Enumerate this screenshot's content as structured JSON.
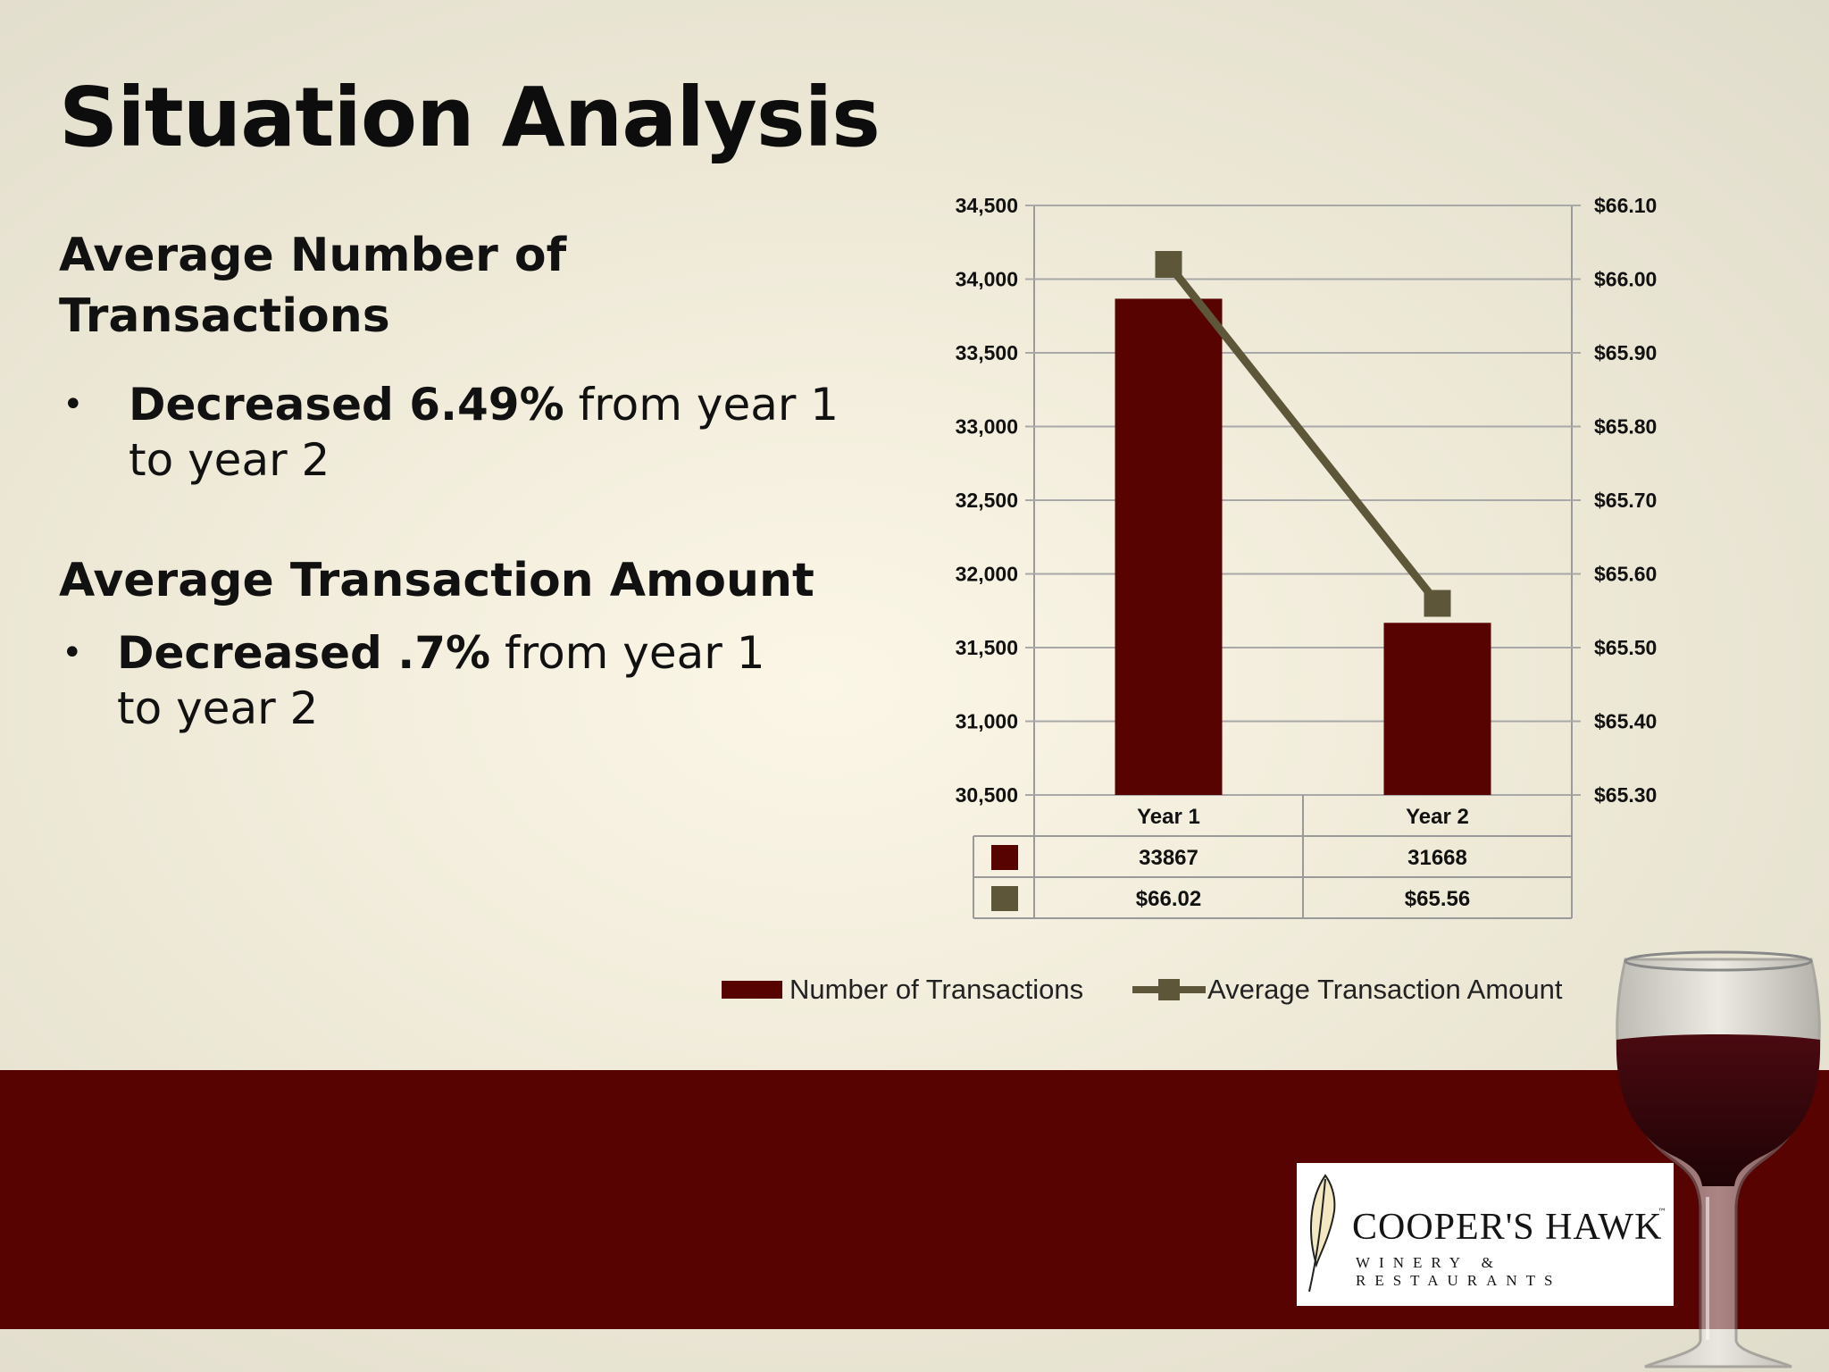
{
  "slide": {
    "title": "Situation Analysis",
    "section1_heading": "Average Number of Transactions",
    "section1_bullet_bold": "Decreased 6.49%",
    "section1_bullet_rest": " from year 1 to year 2",
    "section2_heading": "Average Transaction Amount",
    "section2_bullet_bold": "Decreased .7%",
    "section2_bullet_rest": " from year 1 to year 2",
    "bullet_symbol": "•"
  },
  "chart_data": {
    "type": "bar",
    "categories": [
      "Year 1",
      "Year 2"
    ],
    "series": [
      {
        "name": "Number of Transactions",
        "type": "bar",
        "axis": "left",
        "values": [
          33867,
          31668
        ],
        "labels": [
          "33867",
          "31668"
        ],
        "color": "#570302"
      },
      {
        "name": "Average Transaction Amount",
        "type": "line",
        "axis": "right",
        "values": [
          66.02,
          65.56
        ],
        "labels": [
          "$66.02",
          "$65.56"
        ],
        "color": "#5e5638"
      }
    ],
    "y_left": {
      "min": 30500,
      "max": 34500,
      "step": 500,
      "tick_labels": [
        "30,500",
        "31,000",
        "31,500",
        "32,000",
        "32,500",
        "33,000",
        "33,500",
        "34,000",
        "34,500"
      ]
    },
    "y_right": {
      "min": 65.3,
      "max": 66.1,
      "step": 0.1,
      "tick_labels": [
        "$65.30",
        "$65.40",
        "$65.50",
        "$65.60",
        "$65.70",
        "$65.80",
        "$65.90",
        "$66.00",
        "$66.10"
      ]
    },
    "grid": true,
    "data_table": true,
    "legend_position": "bottom"
  },
  "logo": {
    "name": "COOPER'S HAWK",
    "tm": "™",
    "sub": "WINERY & RESTAURANTS"
  },
  "colors": {
    "accent": "#570302",
    "line": "#5e5638",
    "background": "#f4efdf"
  }
}
